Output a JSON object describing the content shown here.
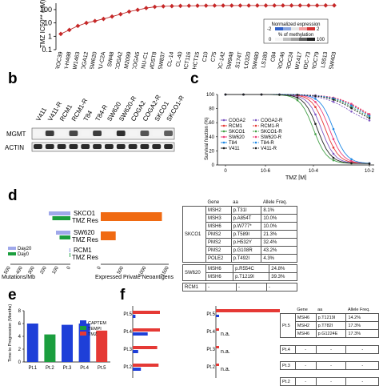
{
  "panel_a": {
    "letter": "",
    "ylabel": "TMZ IC50** (uM)",
    "yticks": [
      "100",
      "10",
      "1",
      "0.1"
    ],
    "cell_lines": [
      "HROC39",
      "NCI-H498",
      "SW1463",
      "COGA12",
      "SW620",
      "SNU-C2A",
      "SW48",
      "COGA2",
      "LIM2099",
      "COGA5",
      "SNU-C1",
      "MDST8",
      "SW837",
      "CL-14",
      "CL-40",
      "HCT116",
      "HCT15",
      "C10",
      "C75",
      "HDC-142",
      "SW948",
      "LS174T",
      "COLO320",
      "SW480",
      "LS180",
      "C84",
      "HROC46",
      "HROC24",
      "SW1417",
      "HDC-73",
      "HROC79",
      "LS513",
      "SW403"
    ],
    "values": [
      1.5,
      3,
      6,
      10,
      14,
      20,
      30,
      45,
      70,
      95,
      130,
      160,
      175,
      182,
      188,
      192,
      195,
      197,
      199,
      200,
      200,
      201,
      201,
      202,
      202,
      203,
      203,
      203,
      204,
      204,
      204,
      205,
      205
    ],
    "legend_title": "Normalized expression",
    "legend_neg": "-2",
    "legend_pos": "2",
    "legend_methyl": "% of methylation",
    "legend_min": "0",
    "legend_max": "100"
  },
  "panel_b": {
    "letter": "b",
    "lanes": [
      "V411",
      "V411-R",
      "RCM1",
      "RCM1-R",
      "T84",
      "T84-R",
      "SW620",
      "SW620-R",
      "COGA2",
      "COGA2-R",
      "SKCO1",
      "SKCO1-R"
    ],
    "row1": "MGMT",
    "row2": "ACTIN",
    "mgmt_intensity": [
      0.05,
      0.85,
      0.05,
      0.8,
      0.05,
      0.85,
      0.05,
      0.9,
      0.05,
      0.75,
      0.05,
      0.7
    ]
  },
  "panel_c": {
    "letter": "c",
    "ylabel": "Survival fraction (%)",
    "xlabel": "TMZ [M]",
    "yticks": [
      "100",
      "80",
      "60",
      "40",
      "20",
      "0"
    ],
    "xticks": [
      "0",
      "10-6",
      "10-4",
      "10-2"
    ],
    "legend": [
      {
        "label": "COGA2",
        "color": "#7e57c2"
      },
      {
        "label": "COGA2-R",
        "color": "#7e57c2"
      },
      {
        "label": "RCM1",
        "color": "#e53935"
      },
      {
        "label": "RCM1-R",
        "color": "#e53935"
      },
      {
        "label": "SKCO1",
        "color": "#43a047"
      },
      {
        "label": "SKCO1-R",
        "color": "#43a047"
      },
      {
        "label": "SW620",
        "color": "#ec407a"
      },
      {
        "label": "SW620-R",
        "color": "#ec407a"
      },
      {
        "label": "T84",
        "color": "#1e88e5"
      },
      {
        "label": "T84-R",
        "color": "#1e88e5"
      },
      {
        "label": "V411",
        "color": "#212121"
      },
      {
        "label": "V411-R",
        "color": "#212121"
      }
    ]
  },
  "panel_d": {
    "letter": "d",
    "groups": [
      {
        "label1": "SKCO1",
        "label2": "TMZ Res",
        "day20": 180,
        "day0": 150,
        "neo": 1350
      },
      {
        "label1": "SW620",
        "label2": "TMZ Res",
        "day20": 120,
        "day0": 90,
        "neo": 330
      },
      {
        "label1": "RCM1",
        "label2": "TMZ Res",
        "day20": 8,
        "day0": 6,
        "neo": 0
      }
    ],
    "legend": [
      {
        "label": "Day20",
        "color": "#9fa8ea"
      },
      {
        "label": "Day0",
        "color": "#1b9e3e"
      }
    ],
    "x_left_ticks": [
      "500",
      "400",
      "300",
      "200",
      "100",
      "0"
    ],
    "x_right_ticks": [
      "0",
      "500",
      "1000",
      "1500"
    ],
    "xlabel_left": "Mutations/Mb",
    "xlabel_right": "Expressed Private Neoantigens",
    "table_headers": [
      "Gene",
      "aa",
      "Allele Freq."
    ],
    "table_skco1": {
      "name": "SKCO1",
      "rows": [
        [
          "MSH2",
          "p.T31I",
          "8.1%"
        ],
        [
          "MSH3",
          "p.A854T",
          "10.0%"
        ],
        [
          "MSH6",
          "p.W777*",
          "10.0%"
        ],
        [
          "PMS2",
          "p.T589I",
          "21.3%"
        ],
        [
          "PMS2",
          "p.H532Y",
          "32.4%"
        ],
        [
          "PMS2",
          "p.G108R",
          "43.2%"
        ],
        [
          "POLE2",
          "p.T492I",
          "4.3%"
        ]
      ]
    },
    "table_sw620": {
      "name": "SW620",
      "rows": [
        [
          "MSH6",
          "p.R554C",
          "24.8%"
        ],
        [
          "MSH6",
          "p.T1219I",
          "39.3%"
        ]
      ]
    },
    "table_rcm1": {
      "name": "RCM1",
      "rows": [
        [
          "-",
          "-",
          "-"
        ]
      ]
    }
  },
  "panel_e": {
    "letter": "e",
    "ylabel": "Time to Progression (Months)",
    "yticks": [
      "8",
      "6",
      "4",
      "2",
      "0"
    ],
    "categories": [
      "Pt.1",
      "Pt.2",
      "Pt.3",
      "Pt.4",
      "Pt.5"
    ],
    "values": [
      6.0,
      4.3,
      5.8,
      6.0,
      4.9
    ],
    "bar_colors": [
      "#1e3fd8",
      "#1b9e3e",
      "#1e3fd8",
      "#1e3fd8",
      "#e53935"
    ],
    "legend": [
      {
        "label": "CAPTEM",
        "color": "#1e3fd8"
      },
      {
        "label": "TEMPI",
        "color": "#1b9e3e"
      },
      {
        "label": "TMZ",
        "color": "#e53935"
      }
    ]
  },
  "panel_f": {
    "letter": "f",
    "patients": [
      {
        "label": "Pt.5",
        "red": 100,
        "blue": 10,
        "red2": 0,
        "blue2": 10,
        "na": ""
      },
      {
        "label": "Pt.4",
        "red": 100,
        "blue": 55,
        "red2": 3,
        "blue2": 0,
        "na": "n.a."
      },
      {
        "label": "Pt.3",
        "red": 90,
        "blue": 20,
        "red2": 3,
        "blue2": 0,
        "na": "n.a."
      },
      {
        "label": "Pt.2",
        "red": 95,
        "blue": 30,
        "red2": 3,
        "blue2": 0,
        "na": "n.a."
      }
    ],
    "table_headers": [
      "Gene",
      "aa",
      "Allele Freq."
    ],
    "pt5_rows": [
      [
        "MSH6",
        "p.T1219I",
        "14.2%"
      ],
      [
        "MSH2",
        "p.T782I",
        "17.3%"
      ],
      [
        "MSH6",
        "p.G1224E",
        "17.3%"
      ]
    ],
    "other_rows": [
      {
        "name": "Pt.4",
        "cells": [
          "-",
          "-",
          "-"
        ]
      },
      {
        "name": "Pt.3",
        "cells": [
          "-",
          "-",
          "-"
        ]
      },
      {
        "name": "Pt.2",
        "cells": [
          "-",
          "-",
          "-"
        ]
      }
    ]
  }
}
